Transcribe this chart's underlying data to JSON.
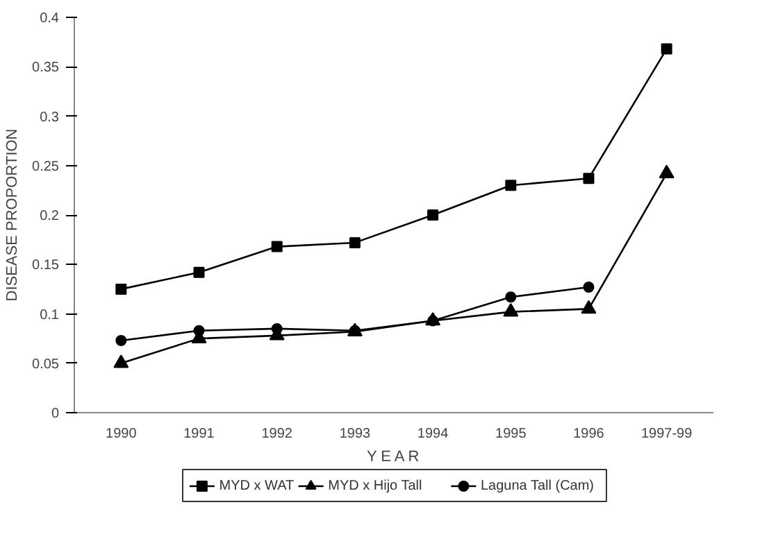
{
  "chart_data": {
    "type": "line",
    "xlabel": "Y E A R",
    "ylabel": "DISEASE PROPORTION",
    "categories": [
      "1990",
      "1991",
      "1992",
      "1993",
      "1994",
      "1995",
      "1996",
      "1997-99"
    ],
    "series": [
      {
        "name": "MYD x WAT",
        "color": "#000000",
        "marker": "square",
        "values": [
          0.125,
          0.142,
          0.168,
          0.172,
          0.2,
          0.23,
          0.237,
          0.368
        ]
      },
      {
        "name": "MYD x Hijo Tall",
        "color": "#000000",
        "marker": "triangle",
        "values": [
          0.05,
          0.075,
          0.078,
          0.082,
          0.093,
          0.102,
          0.105,
          0.242
        ]
      },
      {
        "name": "Laguna Tall (Cam)",
        "color": "#000000",
        "marker": "circle",
        "values": [
          0.073,
          0.083,
          0.085,
          0.083,
          0.093,
          0.117,
          0.127,
          null
        ]
      }
    ],
    "ylim": [
      0,
      0.4
    ],
    "yticks": [
      {
        "value": 0,
        "label": "0"
      },
      0.05,
      0.1,
      0.15,
      0.2,
      0.25,
      0.3,
      0.35,
      0.4
    ],
    "grid": false,
    "legend": "bottom",
    "line_style": "solid"
  }
}
